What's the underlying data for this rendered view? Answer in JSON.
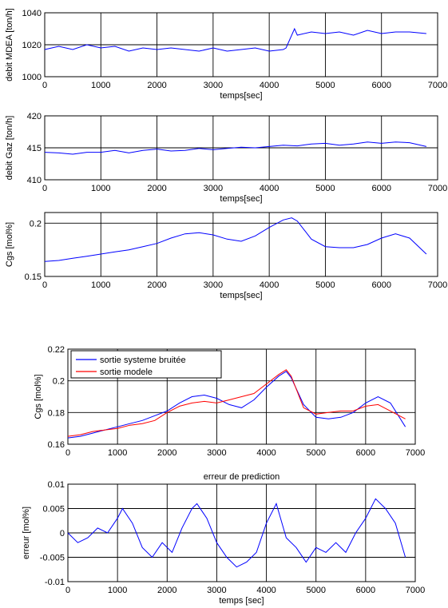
{
  "colors": {
    "system": "#0000ff",
    "model": "#ff0000",
    "axis": "#000000"
  },
  "chart_data": [
    {
      "type": "line",
      "xlabel": "temps[sec]",
      "ylabel": "debit MDEA [ton/h]",
      "xlim": [
        0,
        7000
      ],
      "ylim": [
        1000,
        1040
      ],
      "xticks": [
        0,
        1000,
        2000,
        3000,
        4000,
        5000,
        6000,
        7000
      ],
      "yticks": [
        1000,
        1020,
        1040
      ],
      "xtick_labels": [
        "0",
        "1000",
        "2000",
        "3000",
        "4000",
        "5000",
        "6000",
        "7000"
      ],
      "ytick_labels": [
        "1000",
        "1020",
        "1040"
      ],
      "grid": true,
      "series": [
        {
          "x": [
            0,
            250,
            500,
            750,
            1000,
            1250,
            1500,
            1750,
            2000,
            2250,
            2500,
            2750,
            3000,
            3250,
            3500,
            3750,
            4000,
            4250,
            4300,
            4450,
            4500,
            4750,
            5000,
            5250,
            5500,
            5750,
            6000,
            6250,
            6500,
            6800
          ],
          "values": [
            1017,
            1019,
            1017,
            1020,
            1018,
            1019,
            1016,
            1018,
            1017,
            1018,
            1017,
            1016,
            1018,
            1016,
            1017,
            1018,
            1016,
            1017,
            1018,
            1030,
            1026,
            1028,
            1027,
            1028,
            1026,
            1029,
            1027,
            1028,
            1028,
            1027
          ]
        }
      ]
    },
    {
      "type": "line",
      "xlabel": "temps[sec]",
      "ylabel": "debit Gaz [ton/h]",
      "xlim": [
        0,
        7000
      ],
      "ylim": [
        410,
        420
      ],
      "xticks": [
        0,
        1000,
        2000,
        3000,
        4000,
        5000,
        6000,
        7000
      ],
      "yticks": [
        410,
        415,
        420
      ],
      "xtick_labels": [
        "0",
        "1000",
        "2000",
        "3000",
        "4000",
        "5000",
        "6000",
        "7000"
      ],
      "ytick_labels": [
        "410",
        "415",
        "420"
      ],
      "grid": true,
      "series": [
        {
          "x": [
            0,
            250,
            500,
            750,
            1000,
            1250,
            1500,
            1750,
            2000,
            2250,
            2500,
            2750,
            3000,
            3250,
            3500,
            3750,
            4000,
            4250,
            4500,
            4750,
            5000,
            5250,
            5500,
            5750,
            6000,
            6250,
            6500,
            6800
          ],
          "values": [
            414.3,
            414.2,
            414.0,
            414.3,
            414.3,
            414.6,
            414.2,
            414.6,
            414.8,
            414.5,
            414.6,
            414.9,
            414.7,
            414.9,
            415.1,
            415.0,
            415.2,
            415.4,
            415.3,
            415.6,
            415.7,
            415.4,
            415.6,
            415.9,
            415.7,
            415.9,
            415.8,
            415.2
          ]
        }
      ]
    },
    {
      "type": "line",
      "xlabel": "temps[sec]",
      "ylabel": "Cgs [mol%]",
      "xlim": [
        0,
        7000
      ],
      "ylim": [
        0.15,
        0.21
      ],
      "xticks": [
        0,
        1000,
        2000,
        3000,
        4000,
        5000,
        6000,
        7000
      ],
      "yticks": [
        0.15,
        0.2
      ],
      "xtick_labels": [
        "0",
        "1000",
        "2000",
        "3000",
        "4000",
        "5000",
        "6000",
        "7000"
      ],
      "ytick_labels": [
        "0.15",
        "0.2"
      ],
      "grid": true,
      "series": [
        {
          "x": [
            0,
            250,
            500,
            750,
            1000,
            1250,
            1500,
            1750,
            2000,
            2250,
            2500,
            2750,
            3000,
            3250,
            3500,
            3750,
            4000,
            4250,
            4400,
            4500,
            4750,
            5000,
            5250,
            5500,
            5750,
            6000,
            6250,
            6500,
            6800
          ],
          "values": [
            0.164,
            0.165,
            0.167,
            0.169,
            0.171,
            0.173,
            0.175,
            0.178,
            0.181,
            0.186,
            0.19,
            0.191,
            0.189,
            0.185,
            0.183,
            0.188,
            0.196,
            0.203,
            0.205,
            0.202,
            0.185,
            0.178,
            0.177,
            0.177,
            0.18,
            0.186,
            0.19,
            0.186,
            0.171
          ]
        }
      ]
    },
    {
      "type": "line",
      "xlabel": "",
      "ylabel": "Cgs [mol%]",
      "xlim": [
        0,
        7000
      ],
      "ylim": [
        0.16,
        0.22
      ],
      "xticks": [
        0,
        1000,
        2000,
        3000,
        4000,
        5000,
        6000,
        7000
      ],
      "yticks": [
        0.16,
        0.18,
        0.2,
        0.22
      ],
      "xtick_labels": [
        "0",
        "1000",
        "2000",
        "3000",
        "4000",
        "5000",
        "6000",
        "7000"
      ],
      "ytick_labels": [
        "0.16",
        "0.18",
        "0.2",
        "0.22"
      ],
      "grid": true,
      "legend": "top-left",
      "series": [
        {
          "name": "sortie systeme bruitée",
          "x": [
            0,
            250,
            500,
            750,
            1000,
            1250,
            1500,
            1750,
            2000,
            2250,
            2500,
            2750,
            3000,
            3250,
            3500,
            3750,
            4000,
            4250,
            4400,
            4500,
            4750,
            5000,
            5250,
            5500,
            5750,
            6000,
            6250,
            6500,
            6800
          ],
          "values": [
            0.164,
            0.165,
            0.167,
            0.169,
            0.171,
            0.173,
            0.175,
            0.178,
            0.181,
            0.186,
            0.19,
            0.191,
            0.189,
            0.185,
            0.183,
            0.188,
            0.196,
            0.203,
            0.206,
            0.202,
            0.185,
            0.177,
            0.176,
            0.177,
            0.18,
            0.186,
            0.19,
            0.186,
            0.171
          ]
        },
        {
          "name": "sortie modele",
          "x": [
            0,
            250,
            500,
            750,
            1000,
            1250,
            1500,
            1750,
            2000,
            2250,
            2500,
            2750,
            3000,
            3250,
            3500,
            3750,
            4000,
            4250,
            4400,
            4500,
            4750,
            5000,
            5250,
            5500,
            5750,
            6000,
            6250,
            6500,
            6800
          ],
          "values": [
            0.165,
            0.166,
            0.168,
            0.169,
            0.17,
            0.172,
            0.173,
            0.175,
            0.18,
            0.184,
            0.186,
            0.187,
            0.186,
            0.188,
            0.19,
            0.192,
            0.198,
            0.204,
            0.207,
            0.203,
            0.183,
            0.179,
            0.18,
            0.181,
            0.181,
            0.184,
            0.185,
            0.181,
            0.176
          ]
        }
      ]
    },
    {
      "type": "line",
      "title": "erreur de prediction",
      "xlabel": "temps [sec]",
      "ylabel": "erreur [mol%]",
      "xlim": [
        0,
        7000
      ],
      "ylim": [
        -0.01,
        0.01
      ],
      "xticks": [
        0,
        1000,
        2000,
        3000,
        4000,
        5000,
        6000,
        7000
      ],
      "yticks": [
        -0.01,
        -0.005,
        0,
        0.005,
        0.01
      ],
      "xtick_labels": [
        "0",
        "1000",
        "2000",
        "3000",
        "4000",
        "5000",
        "6000",
        "7000"
      ],
      "ytick_labels": [
        "-0.01",
        "-0.005",
        "0",
        "0.005",
        "0.01"
      ],
      "grid": true,
      "series": [
        {
          "x": [
            0,
            200,
            400,
            600,
            800,
            1000,
            1100,
            1300,
            1500,
            1700,
            1900,
            2100,
            2300,
            2500,
            2600,
            2800,
            3000,
            3200,
            3400,
            3600,
            3800,
            4000,
            4200,
            4400,
            4600,
            4800,
            5000,
            5200,
            5400,
            5600,
            5800,
            6000,
            6100,
            6200,
            6400,
            6600,
            6800
          ],
          "values": [
            0.0,
            -0.002,
            -0.001,
            0.001,
            0.0,
            0.003,
            0.005,
            0.002,
            -0.003,
            -0.005,
            -0.002,
            -0.004,
            0.001,
            0.005,
            0.006,
            0.003,
            -0.002,
            -0.005,
            -0.007,
            -0.006,
            -0.004,
            0.002,
            0.006,
            -0.001,
            -0.003,
            -0.006,
            -0.003,
            -0.004,
            -0.002,
            -0.004,
            0.0,
            0.003,
            0.005,
            0.007,
            0.005,
            0.002,
            -0.005
          ]
        }
      ]
    }
  ]
}
